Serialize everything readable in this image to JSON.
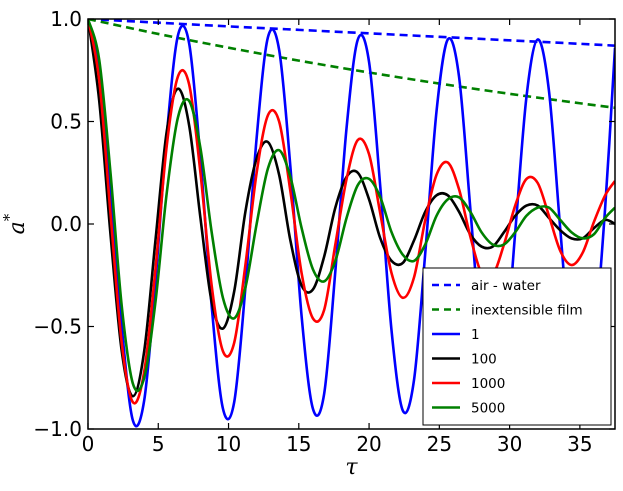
{
  "chart_data": {
    "type": "line",
    "title": "",
    "xlabel": "τ",
    "ylabel": "a",
    "ylabel_superscript": "*",
    "xlim": [
      0,
      37.5
    ],
    "ylim": [
      -1.0,
      1.0
    ],
    "xticks": [
      0,
      5,
      10,
      15,
      20,
      25,
      30,
      35
    ],
    "xtick_labels": [
      "0",
      "5",
      "10",
      "15",
      "20",
      "25",
      "30",
      "35"
    ],
    "yticks": [
      -1.0,
      -0.5,
      0.0,
      0.5,
      1.0
    ],
    "ytick_labels": [
      "−1.0",
      "−0.5",
      "0.0",
      "0.5",
      "1.0"
    ],
    "grid": false,
    "legend_position": "lower-right",
    "series": [
      {
        "name": "air - water",
        "color": "#0000ff",
        "style": "dashed",
        "x": [
          0,
          5,
          10,
          15,
          20,
          25,
          30,
          35,
          37.5
        ],
        "y": [
          1.0,
          0.982,
          0.964,
          0.947,
          0.93,
          0.913,
          0.896,
          0.879,
          0.87
        ]
      },
      {
        "name": "inextensible film",
        "color": "#008000",
        "style": "dashed",
        "x": [
          0,
          5,
          10,
          15,
          20,
          25,
          30,
          35,
          37.5
        ],
        "y": [
          1.0,
          0.927,
          0.86,
          0.797,
          0.739,
          0.685,
          0.635,
          0.589,
          0.567
        ]
      },
      {
        "name": "1",
        "color": "#0000ff",
        "style": "solid",
        "x": [
          0,
          0.8,
          1.6,
          2.4,
          3.2,
          4.0,
          4.8,
          5.6,
          6.4,
          7.2,
          8.0,
          8.8,
          9.6,
          10.4,
          11.2,
          12.0,
          12.8,
          13.6,
          14.4,
          15.2,
          16.0,
          16.8,
          17.6,
          18.4,
          19.2,
          20.0,
          20.8,
          21.6,
          22.4,
          23.2,
          24.0,
          24.8,
          25.6,
          26.4,
          27.2,
          28.0,
          28.8,
          29.6,
          30.4,
          31.2,
          32.0,
          32.8,
          33.6,
          34.4,
          35.2,
          36.0,
          36.8,
          37.5
        ],
        "y": [
          1.0,
          0.76,
          0.18,
          -0.5,
          -0.96,
          -0.86,
          -0.28,
          0.43,
          0.92,
          0.88,
          0.32,
          -0.4,
          -0.9,
          -0.87,
          -0.31,
          0.42,
          0.91,
          0.85,
          0.28,
          -0.45,
          -0.9,
          -0.83,
          -0.23,
          0.47,
          0.9,
          0.79,
          0.18,
          -0.52,
          -0.91,
          -0.76,
          -0.14,
          0.55,
          0.9,
          0.72,
          0.08,
          -0.58,
          -0.9,
          -0.7,
          -0.04,
          0.62,
          0.9,
          0.65,
          -0.02,
          -0.66,
          -0.89,
          -0.6,
          0.08,
          0.86
        ]
      },
      {
        "name": "100",
        "color": "#000000",
        "style": "solid",
        "x": [
          0,
          0.8,
          1.6,
          2.4,
          3.2,
          4.0,
          4.8,
          5.6,
          6.4,
          7.2,
          8.0,
          8.8,
          9.6,
          10.4,
          11.2,
          12.0,
          12.8,
          13.6,
          14.4,
          15.2,
          16.0,
          16.8,
          17.6,
          18.4,
          19.2,
          20.0,
          20.8,
          21.6,
          22.4,
          23.2,
          24.0,
          24.8,
          25.6,
          26.4,
          27.2,
          28.0,
          28.8,
          29.6,
          30.4,
          31.2,
          32.0,
          32.8,
          33.6,
          34.4,
          35.2,
          36.0,
          36.8,
          37.5
        ],
        "y": [
          1.0,
          0.6,
          -0.05,
          -0.62,
          -0.84,
          -0.62,
          -0.08,
          0.45,
          0.66,
          0.48,
          0.03,
          -0.38,
          -0.51,
          -0.33,
          0.06,
          0.32,
          0.4,
          0.24,
          -0.08,
          -0.3,
          -0.32,
          -0.16,
          0.08,
          0.23,
          0.25,
          0.12,
          -0.07,
          -0.18,
          -0.19,
          -0.08,
          0.06,
          0.14,
          0.14,
          0.06,
          -0.05,
          -0.11,
          -0.11,
          -0.04,
          0.04,
          0.09,
          0.09,
          0.03,
          -0.03,
          -0.07,
          -0.07,
          -0.02,
          0.02,
          0.0
        ]
      },
      {
        "name": "1000",
        "color": "#ff0000",
        "style": "solid",
        "x": [
          0,
          0.8,
          1.6,
          2.4,
          3.2,
          4.0,
          4.8,
          5.6,
          6.4,
          7.2,
          8.0,
          8.8,
          9.6,
          10.4,
          11.2,
          12.0,
          12.8,
          13.6,
          14.4,
          15.2,
          16.0,
          16.8,
          17.6,
          18.4,
          19.2,
          20.0,
          20.8,
          21.6,
          22.4,
          23.2,
          24.0,
          24.8,
          25.6,
          26.4,
          27.2,
          28.0,
          28.8,
          29.6,
          30.4,
          31.2,
          32.0,
          32.8,
          33.6,
          34.4,
          35.2,
          36.0,
          36.8,
          37.5
        ],
        "y": [
          1.0,
          0.7,
          0.05,
          -0.58,
          -0.87,
          -0.72,
          -0.22,
          0.38,
          0.72,
          0.68,
          0.25,
          -0.3,
          -0.62,
          -0.58,
          -0.2,
          0.25,
          0.53,
          0.5,
          0.16,
          -0.24,
          -0.46,
          -0.42,
          -0.1,
          0.22,
          0.41,
          0.34,
          0.05,
          -0.24,
          -0.36,
          -0.26,
          0.02,
          0.24,
          0.3,
          0.17,
          -0.06,
          -0.24,
          -0.25,
          -0.1,
          0.09,
          0.22,
          0.2,
          0.04,
          -0.13,
          -0.2,
          -0.14,
          0.01,
          0.14,
          0.21
        ]
      },
      {
        "name": "5000",
        "color": "#008000",
        "style": "solid",
        "x": [
          0,
          0.8,
          1.6,
          2.4,
          3.2,
          4.0,
          4.8,
          5.6,
          6.4,
          7.2,
          8.0,
          8.8,
          9.6,
          10.4,
          11.2,
          12.0,
          12.8,
          13.6,
          14.4,
          15.2,
          16.0,
          16.8,
          17.6,
          18.4,
          19.2,
          20.0,
          20.8,
          21.6,
          22.4,
          23.2,
          24.0,
          24.8,
          25.6,
          26.4,
          27.2,
          28.0,
          28.8,
          29.6,
          30.4,
          31.2,
          32.0,
          32.8,
          33.6,
          34.4,
          35.2,
          36.0,
          36.8,
          37.5
        ],
        "y": [
          1.0,
          0.8,
          0.25,
          -0.4,
          -0.78,
          -0.75,
          -0.38,
          0.15,
          0.52,
          0.6,
          0.37,
          -0.04,
          -0.36,
          -0.46,
          -0.31,
          0.0,
          0.27,
          0.36,
          0.23,
          -0.02,
          -0.22,
          -0.28,
          -0.18,
          0.03,
          0.19,
          0.22,
          0.13,
          -0.04,
          -0.15,
          -0.18,
          -0.1,
          0.04,
          0.12,
          0.13,
          0.06,
          -0.04,
          -0.1,
          -0.1,
          -0.04,
          0.04,
          0.08,
          0.08,
          0.02,
          -0.04,
          -0.07,
          -0.05,
          0.03,
          0.08
        ]
      }
    ]
  }
}
